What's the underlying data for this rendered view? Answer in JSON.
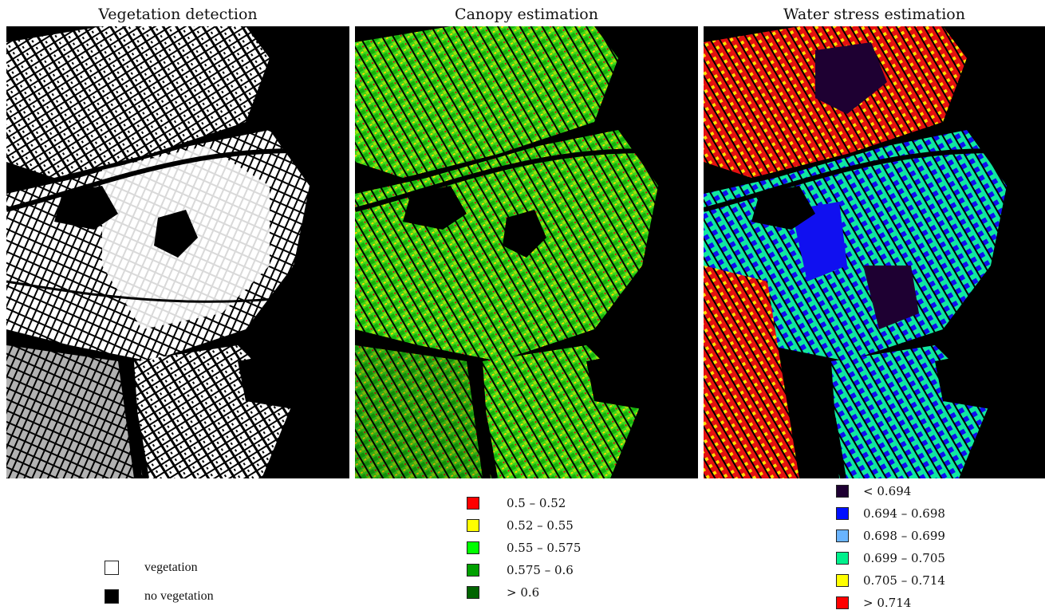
{
  "panels": [
    {
      "title": "Vegetation detection",
      "map": "vegetation-binary-map"
    },
    {
      "title": "Canopy estimation",
      "map": "canopy-classified-map"
    },
    {
      "title": "Water stress estimation",
      "map": "water-stress-classified-map"
    }
  ],
  "legends": {
    "vegetation": [
      {
        "label": "vegetation",
        "color": "#ffffff"
      },
      {
        "label": "no vegetation",
        "color": "#000000"
      }
    ],
    "canopy": [
      {
        "label": "0.5    – 0.52",
        "color": "#ff0000"
      },
      {
        "label": "0.52  – 0.55",
        "color": "#ffff00"
      },
      {
        "label": "0.55  – 0.575",
        "color": "#00ff00"
      },
      {
        "label": "0.575  – 0.6",
        "color": "#00a000"
      },
      {
        "label": " > 0.6",
        "color": "#006400"
      }
    ],
    "water_stress": [
      {
        "label": "< 0.694",
        "color": "#1e0032"
      },
      {
        "label": "0.694  – 0.698",
        "color": "#0010ff"
      },
      {
        "label": "0.698  – 0.699",
        "color": "#6ab4ff"
      },
      {
        "label": " 0.699 –  0.705",
        "color": "#00f08c"
      },
      {
        "label": " 0.705 – 0.714",
        "color": "#ffff00"
      },
      {
        "label": " > 0.714",
        "color": "#ff0000"
      }
    ]
  }
}
